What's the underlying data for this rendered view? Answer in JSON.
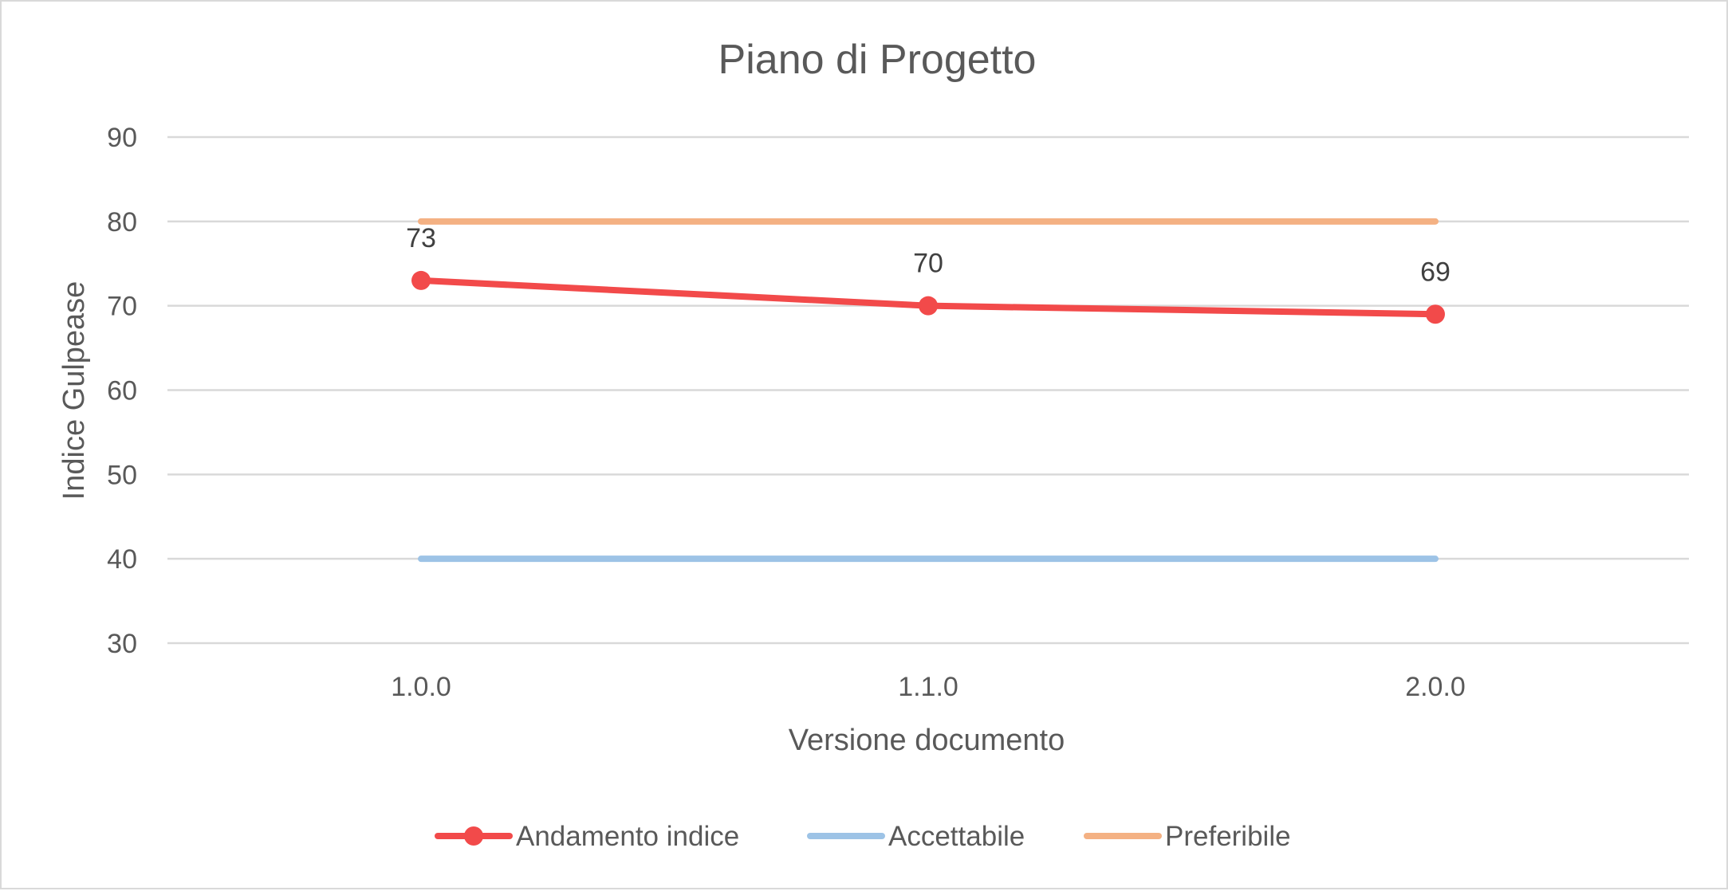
{
  "chart_data": {
    "type": "line",
    "title": "Piano di Progetto",
    "xlabel": "Versione documento",
    "ylabel": "Indice Gulpease",
    "categories": [
      "1.0.0",
      "1.1.0",
      "2.0.0"
    ],
    "ylim": [
      30,
      90
    ],
    "yticks": [
      90,
      80,
      70,
      60,
      50,
      40,
      30
    ],
    "grid": true,
    "legend_position": "bottom",
    "series": [
      {
        "name": "Andamento indice",
        "values": [
          73,
          70,
          69
        ],
        "color": "#f24a4a",
        "markers": true,
        "data_labels": [
          "73",
          "70",
          "69"
        ]
      },
      {
        "name": "Accettabile",
        "values": [
          40,
          40,
          40
        ],
        "color": "#9dc3e6",
        "markers": false
      },
      {
        "name": "Preferibile",
        "values": [
          80,
          80,
          80
        ],
        "color": "#f4b183",
        "markers": false
      }
    ]
  }
}
